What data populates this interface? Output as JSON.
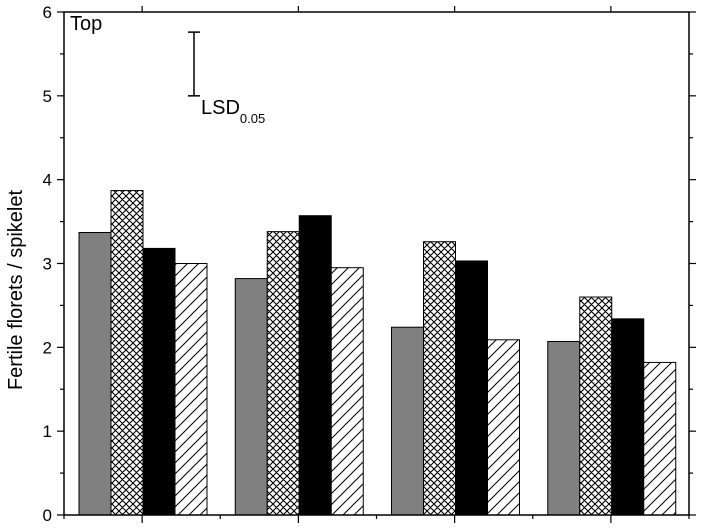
{
  "chart_data": {
    "type": "bar",
    "panel_label": "Top",
    "ylabel": "Fertile florets / spikelet",
    "ylim": [
      0,
      6
    ],
    "yticks": [
      "0",
      "1",
      "2",
      "3",
      "4",
      "5",
      "6"
    ],
    "groups": 4,
    "series": [
      {
        "pattern": "solid-gray",
        "values": [
          3.37,
          2.82,
          2.24,
          2.07
        ]
      },
      {
        "pattern": "crosshatch",
        "values": [
          3.87,
          3.38,
          3.26,
          2.6
        ]
      },
      {
        "pattern": "solid-black",
        "values": [
          3.18,
          3.57,
          3.03,
          2.34
        ]
      },
      {
        "pattern": "diagonal-hatch",
        "values": [
          3.0,
          2.95,
          2.09,
          1.82
        ]
      }
    ],
    "lsd": {
      "label_main": "LSD",
      "label_sub": "0.05",
      "value": 0.76
    },
    "colors": {
      "gray": "#808080",
      "black": "#000000",
      "axis": "#000000"
    },
    "grid": false,
    "legend": "none"
  }
}
